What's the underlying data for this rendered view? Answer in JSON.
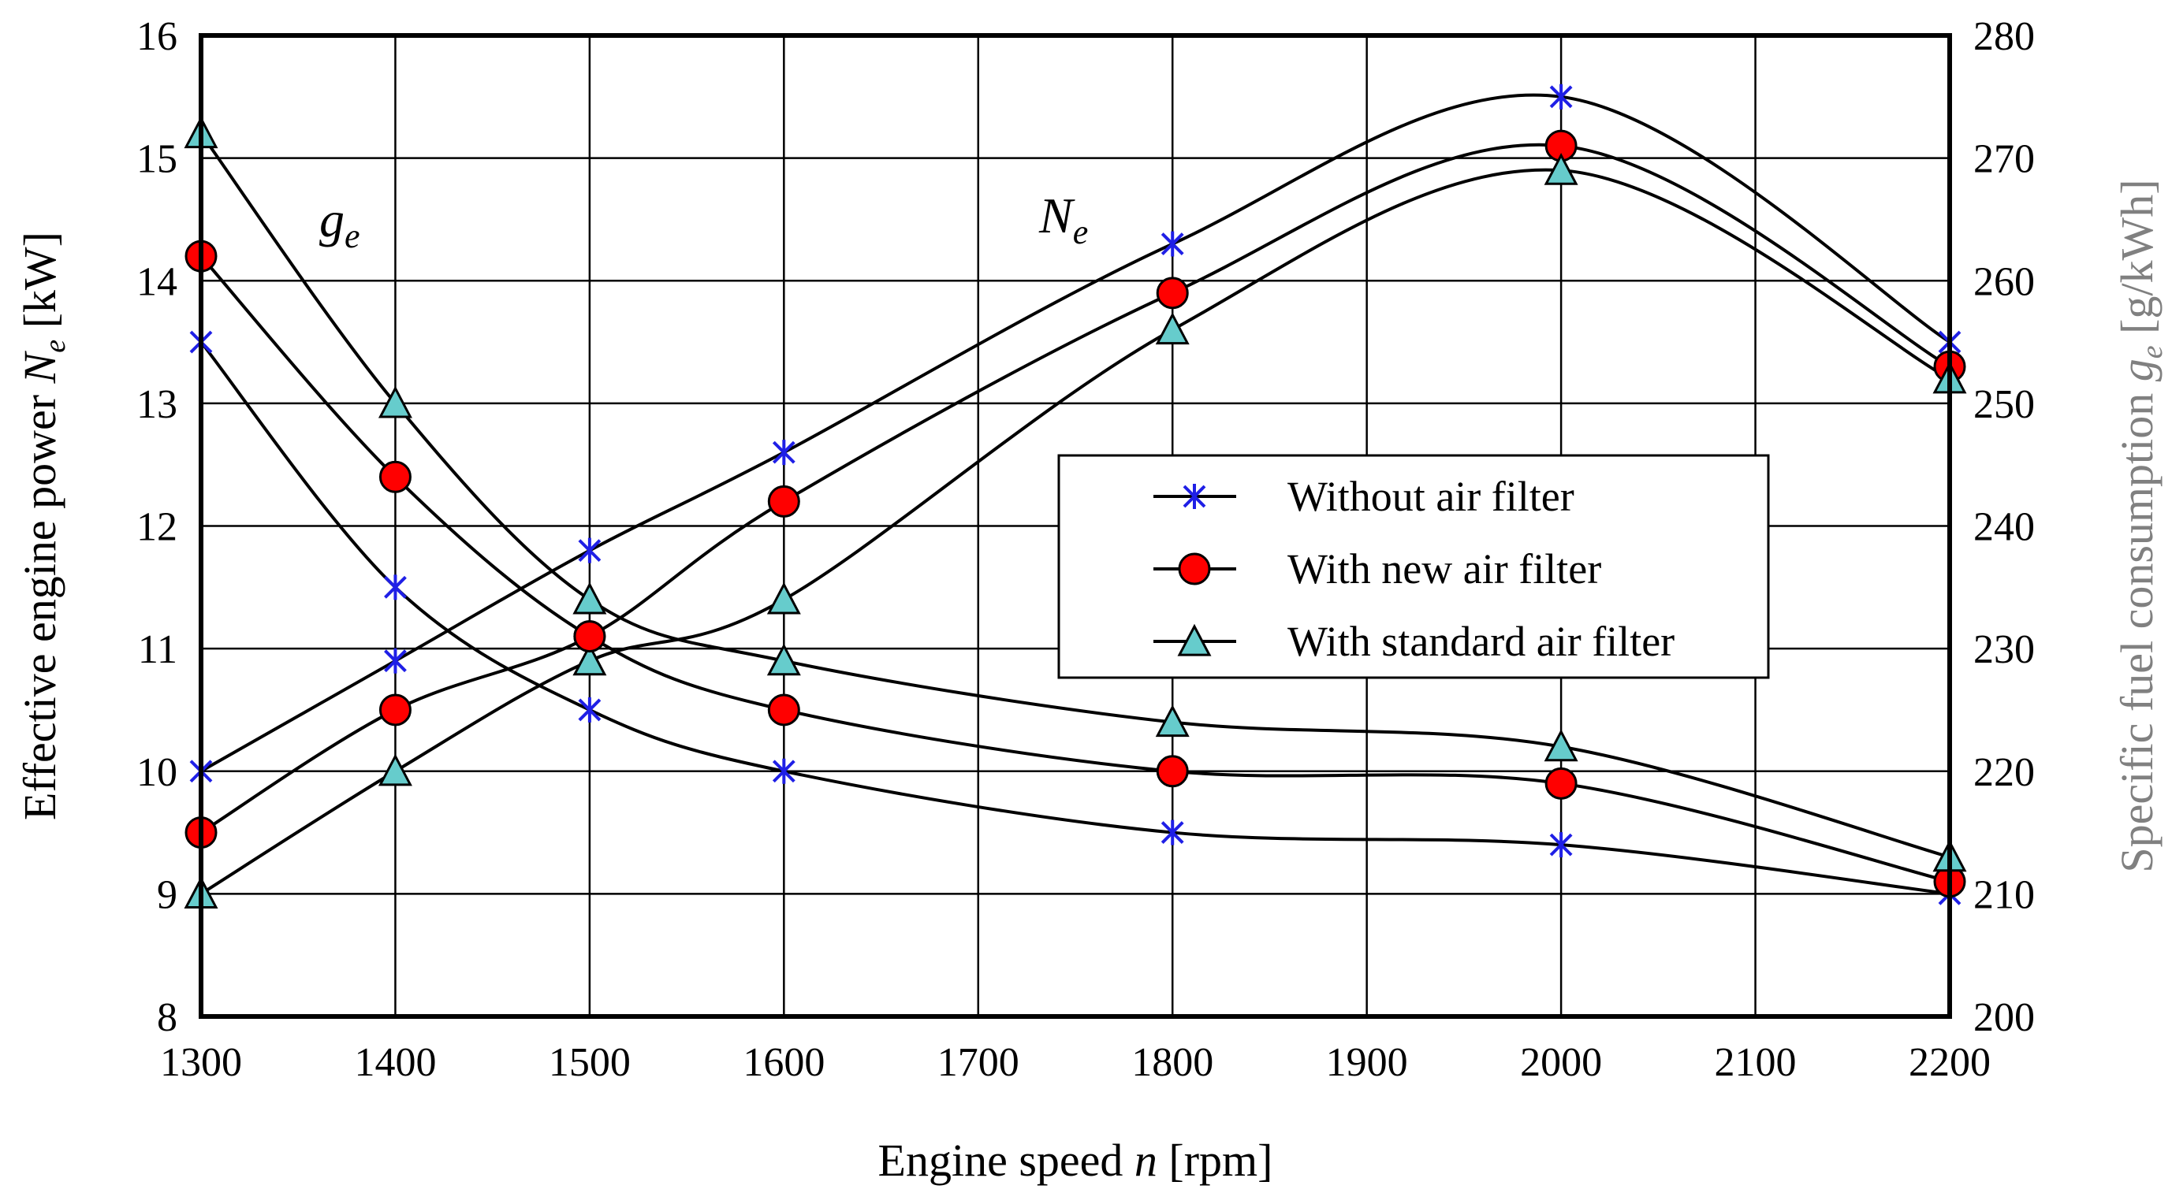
{
  "chart_data": {
    "type": "line",
    "title": "",
    "xlabel": {
      "main": "Engine speed ",
      "symbol": "n",
      "unit": " [rpm]"
    },
    "ylabel_left": {
      "main": "Effective engine power ",
      "symbol": "N",
      "sub": "e",
      "unit": " [kW]"
    },
    "ylabel_right": {
      "main": "Specific fuel consumption ",
      "symbol": "g",
      "sub": "e",
      "unit": " [g/kWh]"
    },
    "x_ticks": [
      1300,
      1400,
      1500,
      1600,
      1700,
      1800,
      1900,
      2000,
      2100,
      2200
    ],
    "x_tick_labels": [
      "1300",
      "1400",
      "1500",
      "1600",
      "1700",
      "1800",
      "1900",
      "2000",
      "2100",
      "2200"
    ],
    "xlim": [
      1300,
      2200
    ],
    "y_left_ticks": [
      "8",
      "9",
      "10",
      "11",
      "12",
      "13",
      "14",
      "15",
      "16"
    ],
    "ylim_left": [
      8,
      16
    ],
    "y_right_ticks": [
      "200",
      "210",
      "220",
      "230",
      "240",
      "250",
      "260",
      "270",
      "280"
    ],
    "ylim_right": [
      200,
      280
    ],
    "grid": true,
    "annotations": [
      {
        "symbol": "g",
        "sub": "e",
        "refers_to": "specific fuel consumption curves"
      },
      {
        "symbol": "N",
        "sub": "e",
        "refers_to": "effective engine power curves"
      }
    ],
    "legend_position": "center-right",
    "x": [
      1300,
      1400,
      1500,
      1600,
      1800,
      2000,
      2200
    ],
    "series": [
      {
        "name": "Without air filter",
        "marker": "asterisk",
        "axis": "left",
        "quantity": "Ne",
        "values": [
          10.0,
          10.9,
          11.8,
          12.6,
          14.3,
          15.5,
          13.5
        ]
      },
      {
        "name": "With new air filter",
        "marker": "circle",
        "axis": "left",
        "quantity": "Ne",
        "values": [
          9.5,
          10.5,
          11.1,
          12.2,
          13.9,
          15.1,
          13.3
        ]
      },
      {
        "name": "With standard air filter",
        "marker": "triangle",
        "axis": "left",
        "quantity": "Ne",
        "values": [
          9.0,
          10.0,
          10.9,
          11.4,
          13.6,
          14.9,
          13.2
        ]
      },
      {
        "name": "Without air filter",
        "marker": "asterisk",
        "axis": "right",
        "quantity": "ge",
        "values": [
          255,
          235,
          225,
          220,
          215,
          214,
          210
        ]
      },
      {
        "name": "With new air filter",
        "marker": "circle",
        "axis": "right",
        "quantity": "ge",
        "values": [
          262,
          244,
          231,
          225,
          220,
          219,
          211
        ]
      },
      {
        "name": "With standard air filter",
        "marker": "triangle",
        "axis": "right",
        "quantity": "ge",
        "values": [
          272,
          250,
          234,
          229,
          224,
          222,
          213
        ]
      }
    ],
    "legend": [
      {
        "label": "Without air filter",
        "marker": "asterisk"
      },
      {
        "label": "With new air filter",
        "marker": "circle"
      },
      {
        "label": "With standard air filter",
        "marker": "triangle"
      }
    ],
    "colors": {
      "line": "#000000",
      "asterisk": "#1f1fe6",
      "circle_fill": "#ff0000",
      "triangle_fill": "#66cccc",
      "right_axis_text": "#808080",
      "grid": "#000000"
    }
  }
}
